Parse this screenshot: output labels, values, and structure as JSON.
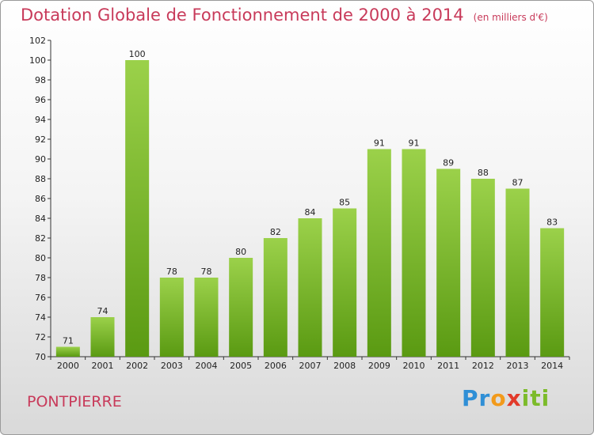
{
  "title": "Dotation Globale de Fonctionnement de 2000 à 2014",
  "subtitle": "(en milliers d'€)",
  "commune": "PONTPIERRE",
  "logo": {
    "text": "Proxiti",
    "parts": [
      "Pr",
      "o",
      "x",
      "iti"
    ],
    "colors": [
      "#2f8fd6",
      "#f29a1b",
      "#e23a2a",
      "#7cbb2a"
    ]
  },
  "colors": {
    "bar_top": "#9bd14a",
    "bar_bottom": "#5a9a12",
    "title": "#c83a5a"
  },
  "chart_data": {
    "type": "bar",
    "categories": [
      "2000",
      "2001",
      "2002",
      "2003",
      "2004",
      "2005",
      "2006",
      "2007",
      "2008",
      "2009",
      "2010",
      "2011",
      "2012",
      "2013",
      "2014"
    ],
    "values": [
      71,
      74,
      100,
      78,
      78,
      80,
      82,
      84,
      85,
      91,
      91,
      89,
      88,
      87,
      83
    ],
    "value_labels": [
      "71",
      "74",
      "100",
      "78",
      "78",
      "80",
      "82",
      "84",
      "85",
      "91",
      "91",
      "89",
      "88",
      "87",
      "83"
    ],
    "ylim": [
      70,
      102
    ],
    "yticks": [
      "70",
      "72",
      "74",
      "76",
      "78",
      "80",
      "82",
      "84",
      "86",
      "88",
      "90",
      "92",
      "94",
      "96",
      "98",
      "100",
      "102"
    ],
    "grid": false,
    "xlabel": "",
    "ylabel": ""
  }
}
